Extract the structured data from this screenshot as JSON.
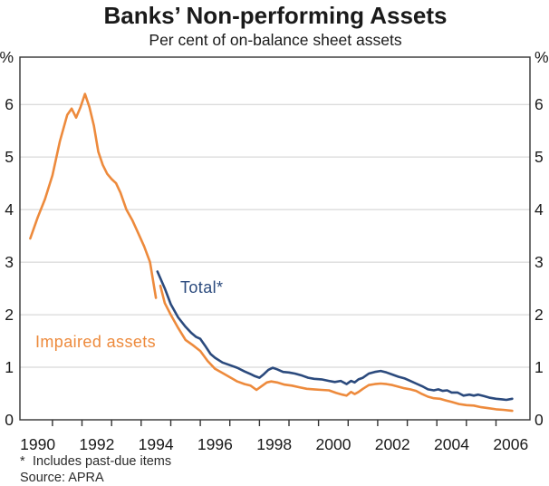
{
  "title": "Banks’ Non-performing Assets",
  "subtitle": "Per cent of on-balance sheet assets",
  "unit_label": "%",
  "footnote_marker": "*",
  "footnote_text": "Includes past-due items",
  "source": "Source: APRA",
  "colors": {
    "total_line": "#2B4A7D",
    "impaired_line": "#ED8A3C",
    "gridline": "#CFCFCF",
    "axis": "#333333",
    "text": "#1A1A1A"
  },
  "chart_data": {
    "type": "line",
    "title": "Banks’ Non-performing Assets",
    "subtitle": "Per cent of on-balance sheet assets",
    "xlabel": "",
    "ylabel": "%",
    "xlim": [
      1989.4,
      2006.65
    ],
    "ylim": [
      0,
      6.9
    ],
    "yticks": [
      0,
      1,
      2,
      3,
      4,
      5,
      6
    ],
    "xticks": [
      1990,
      1992,
      1994,
      1996,
      1998,
      2000,
      2002,
      2004,
      2006
    ],
    "xticks_minor": [
      1990.5,
      1991.5,
      1992.5,
      1993.5,
      1994.5,
      1995.5,
      1996.5,
      1997.5,
      1998.5,
      1999.5,
      2000.5,
      2001.5,
      2002.5,
      2003.5,
      2004.5,
      2005.5
    ],
    "grid": "horizontal",
    "legend": "inline-labels",
    "series": [
      {
        "id": "total",
        "name": "Total*",
        "color": "#2B4A7D",
        "segments": [
          [
            [
              1994.05,
              2.82
            ],
            [
              1994.3,
              2.5
            ],
            [
              1994.5,
              2.2
            ],
            [
              1994.75,
              1.95
            ],
            [
              1995.0,
              1.77
            ],
            [
              1995.2,
              1.65
            ],
            [
              1995.35,
              1.58
            ],
            [
              1995.5,
              1.54
            ],
            [
              1995.65,
              1.42
            ],
            [
              1995.85,
              1.25
            ],
            [
              1996.0,
              1.18
            ],
            [
              1996.25,
              1.09
            ],
            [
              1996.5,
              1.04
            ],
            [
              1996.75,
              0.99
            ],
            [
              1997.0,
              0.92
            ],
            [
              1997.2,
              0.87
            ],
            [
              1997.35,
              0.83
            ],
            [
              1997.5,
              0.8
            ],
            [
              1997.65,
              0.87
            ],
            [
              1997.8,
              0.95
            ],
            [
              1997.95,
              0.99
            ],
            [
              1998.1,
              0.96
            ],
            [
              1998.3,
              0.91
            ],
            [
              1998.5,
              0.9
            ],
            [
              1998.7,
              0.88
            ],
            [
              1998.95,
              0.84
            ],
            [
              1999.15,
              0.8
            ],
            [
              1999.35,
              0.78
            ],
            [
              1999.6,
              0.77
            ],
            [
              1999.85,
              0.74
            ],
            [
              2000.05,
              0.72
            ],
            [
              2000.25,
              0.74
            ],
            [
              2000.45,
              0.68
            ],
            [
              2000.6,
              0.74
            ],
            [
              2000.72,
              0.71
            ],
            [
              2000.85,
              0.77
            ],
            [
              2001.0,
              0.8
            ],
            [
              2001.2,
              0.88
            ],
            [
              2001.4,
              0.91
            ],
            [
              2001.6,
              0.93
            ],
            [
              2001.8,
              0.9
            ],
            [
              2002.0,
              0.86
            ],
            [
              2002.2,
              0.82
            ],
            [
              2002.4,
              0.79
            ],
            [
              2002.6,
              0.74
            ],
            [
              2002.8,
              0.69
            ],
            [
              2003.0,
              0.64
            ],
            [
              2003.2,
              0.58
            ],
            [
              2003.4,
              0.56
            ],
            [
              2003.55,
              0.58
            ],
            [
              2003.7,
              0.55
            ],
            [
              2003.85,
              0.56
            ],
            [
              2004.0,
              0.52
            ],
            [
              2004.2,
              0.52
            ],
            [
              2004.4,
              0.46
            ],
            [
              2004.6,
              0.48
            ],
            [
              2004.75,
              0.46
            ],
            [
              2004.9,
              0.48
            ],
            [
              2005.1,
              0.45
            ],
            [
              2005.3,
              0.42
            ],
            [
              2005.5,
              0.4
            ],
            [
              2005.7,
              0.39
            ],
            [
              2005.85,
              0.38
            ],
            [
              2006.05,
              0.4
            ]
          ]
        ]
      },
      {
        "id": "impaired",
        "name": "Impaired assets",
        "color": "#ED8A3C",
        "segments": [
          [
            [
              1989.75,
              3.45
            ],
            [
              1990.0,
              3.85
            ],
            [
              1990.25,
              4.2
            ],
            [
              1990.5,
              4.65
            ],
            [
              1990.75,
              5.3
            ],
            [
              1991.0,
              5.8
            ],
            [
              1991.15,
              5.92
            ],
            [
              1991.3,
              5.75
            ],
            [
              1991.45,
              5.95
            ],
            [
              1991.6,
              6.2
            ],
            [
              1991.75,
              5.95
            ],
            [
              1991.9,
              5.6
            ],
            [
              1992.05,
              5.1
            ],
            [
              1992.2,
              4.85
            ],
            [
              1992.35,
              4.68
            ],
            [
              1992.5,
              4.58
            ],
            [
              1992.65,
              4.5
            ],
            [
              1992.8,
              4.32
            ],
            [
              1993.0,
              4.0
            ],
            [
              1993.2,
              3.8
            ],
            [
              1993.4,
              3.55
            ],
            [
              1993.6,
              3.3
            ],
            [
              1993.8,
              3.0
            ],
            [
              1994.0,
              2.32
            ]
          ],
          [
            [
              1994.15,
              2.55
            ],
            [
              1994.3,
              2.22
            ],
            [
              1994.5,
              2.0
            ],
            [
              1994.75,
              1.75
            ],
            [
              1995.0,
              1.52
            ],
            [
              1995.25,
              1.42
            ],
            [
              1995.5,
              1.31
            ],
            [
              1995.75,
              1.12
            ],
            [
              1996.0,
              0.97
            ],
            [
              1996.25,
              0.89
            ],
            [
              1996.5,
              0.81
            ],
            [
              1996.75,
              0.73
            ],
            [
              1997.0,
              0.68
            ],
            [
              1997.2,
              0.65
            ],
            [
              1997.4,
              0.57
            ],
            [
              1997.6,
              0.65
            ],
            [
              1997.75,
              0.71
            ],
            [
              1997.9,
              0.73
            ],
            [
              1998.1,
              0.71
            ],
            [
              1998.35,
              0.67
            ],
            [
              1998.6,
              0.65
            ],
            [
              1998.85,
              0.62
            ],
            [
              1999.1,
              0.59
            ],
            [
              1999.35,
              0.58
            ],
            [
              1999.6,
              0.57
            ],
            [
              1999.85,
              0.56
            ],
            [
              2000.1,
              0.51
            ],
            [
              2000.3,
              0.48
            ],
            [
              2000.45,
              0.46
            ],
            [
              2000.6,
              0.53
            ],
            [
              2000.72,
              0.49
            ],
            [
              2000.85,
              0.53
            ],
            [
              2001.0,
              0.59
            ],
            [
              2001.2,
              0.66
            ],
            [
              2001.4,
              0.68
            ],
            [
              2001.6,
              0.69
            ],
            [
              2001.8,
              0.68
            ],
            [
              2002.0,
              0.66
            ],
            [
              2002.2,
              0.63
            ],
            [
              2002.4,
              0.6
            ],
            [
              2002.6,
              0.58
            ],
            [
              2002.8,
              0.55
            ],
            [
              2003.0,
              0.49
            ],
            [
              2003.2,
              0.44
            ],
            [
              2003.4,
              0.41
            ],
            [
              2003.6,
              0.4
            ],
            [
              2003.8,
              0.37
            ],
            [
              2004.0,
              0.34
            ],
            [
              2004.25,
              0.3
            ],
            [
              2004.5,
              0.28
            ],
            [
              2004.75,
              0.27
            ],
            [
              2005.0,
              0.24
            ],
            [
              2005.25,
              0.22
            ],
            [
              2005.5,
              0.2
            ],
            [
              2005.75,
              0.19
            ],
            [
              2006.05,
              0.17
            ]
          ]
        ]
      }
    ]
  }
}
